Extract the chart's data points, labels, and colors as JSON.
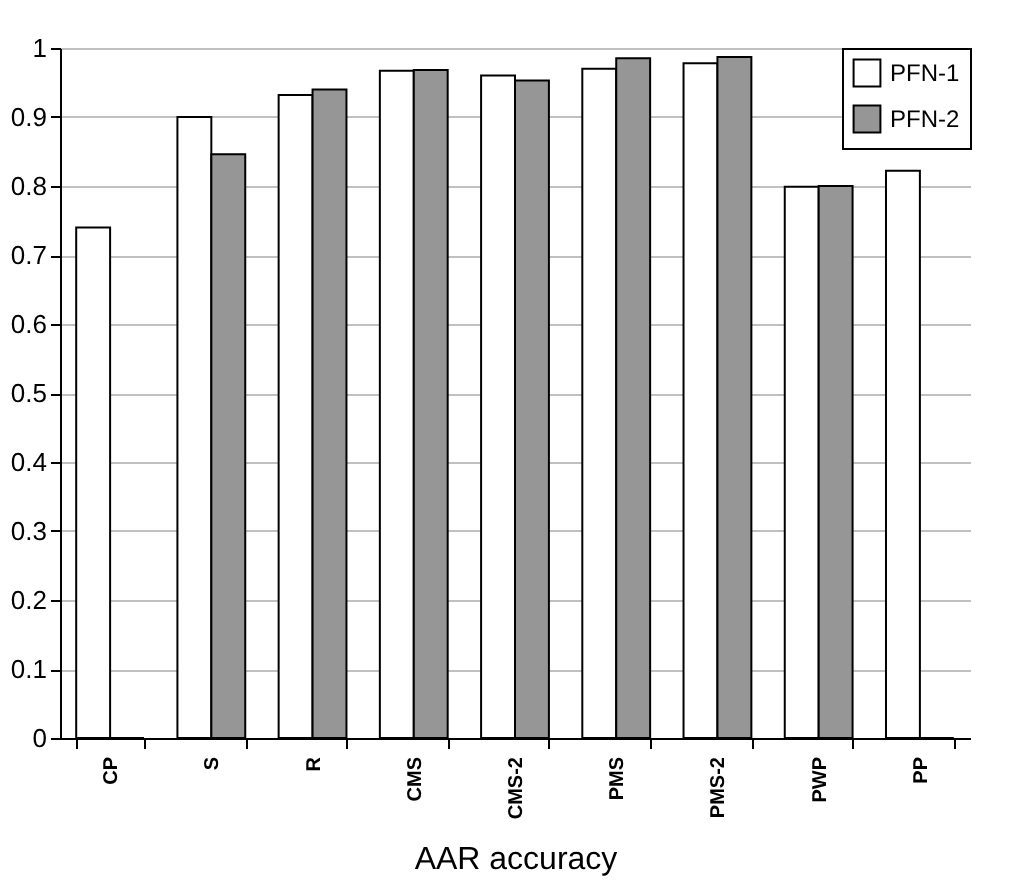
{
  "chart_data": {
    "type": "bar",
    "xlabel": "AAR accuracy",
    "categories": [
      "CP",
      "S",
      "R",
      "CMS",
      "CMS-2",
      "PMS",
      "PMS-2",
      "PWP",
      "PP"
    ],
    "series": [
      {
        "name": "PFN-1",
        "color": "#ffffff",
        "values": [
          0.74,
          0.9,
          0.932,
          0.967,
          0.96,
          0.97,
          0.978,
          0.799,
          0.822
        ]
      },
      {
        "name": "PFN-2",
        "color": "#969696",
        "values": [
          0,
          0.846,
          0.94,
          0.968,
          0.953,
          0.985,
          0.987,
          0.8,
          0
        ]
      }
    ],
    "ylim": [
      0,
      1
    ],
    "yticks": [
      0,
      0.1,
      0.2,
      0.3,
      0.4,
      0.5,
      0.6,
      0.7,
      0.8,
      0.9,
      1
    ],
    "grid": "y",
    "legend": "top right"
  }
}
